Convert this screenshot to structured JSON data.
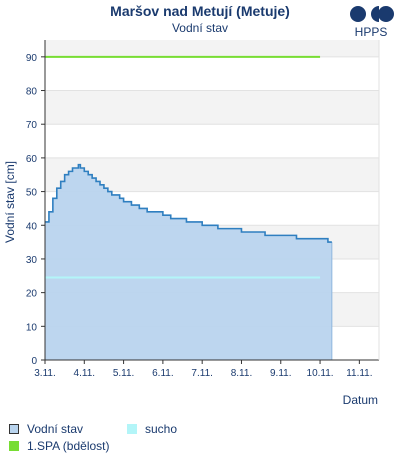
{
  "chart_data": {
    "type": "area",
    "title": "Maršov nad Metují (Metuje)",
    "subtitle": "Vodní stav",
    "xlabel": "Datum",
    "ylabel": "Vodní stav [cm]",
    "ylim": [
      0,
      95
    ],
    "yticks": [
      0,
      10,
      20,
      30,
      40,
      50,
      60,
      70,
      80,
      90
    ],
    "xlim": [
      3,
      11.5
    ],
    "xticks": [
      3,
      4,
      5,
      6,
      7,
      8,
      9,
      10,
      11
    ],
    "xtick_labels": [
      "3.11.",
      "4.11.",
      "5.11.",
      "6.11.",
      "7.11.",
      "8.11.",
      "9.11.",
      "10.11.",
      "11.11."
    ],
    "grid": "horizontal alternating bands",
    "legend_position": "bottom",
    "series": [
      {
        "name": "Vodní stav",
        "color": "#2f7fc0",
        "fill": "#b9d4ee",
        "x": [
          3.0,
          3.1,
          3.2,
          3.3,
          3.4,
          3.5,
          3.6,
          3.7,
          3.8,
          3.85,
          3.9,
          4.0,
          4.1,
          4.2,
          4.3,
          4.4,
          4.5,
          4.6,
          4.7,
          4.8,
          4.9,
          5.0,
          5.2,
          5.4,
          5.6,
          5.8,
          6.0,
          6.2,
          6.4,
          6.6,
          6.8,
          7.0,
          7.2,
          7.4,
          7.6,
          7.8,
          8.0,
          8.3,
          8.6,
          9.0,
          9.4,
          9.7,
          10.0,
          10.2,
          10.3
        ],
        "y": [
          41,
          44,
          48,
          51,
          53,
          55,
          56,
          57,
          57,
          58,
          57,
          56,
          55,
          54,
          53,
          52,
          51,
          50,
          49,
          49,
          48,
          47,
          46,
          45,
          44,
          44,
          43,
          42,
          42,
          41,
          41,
          40,
          40,
          39,
          39,
          39,
          38,
          38,
          37,
          37,
          36,
          36,
          36,
          35,
          35
        ]
      }
    ],
    "thresholds": [
      {
        "name": "1.SPA (bdělost)",
        "value": 90,
        "color": "#77dd33",
        "x_start": 3.0,
        "x_end": 10.0
      },
      {
        "name": "sucho",
        "value": 24.5,
        "color": "#b3f5f8",
        "x_start": 3.0,
        "x_end": 10.0
      }
    ]
  },
  "logo": {
    "text": "HPPS",
    "color": "#1a3a6e"
  },
  "legend": {
    "items": [
      {
        "label": "Vodní stav",
        "swatch": "#b9d4ee",
        "border": "#333333"
      },
      {
        "label": "sucho",
        "swatch": "#b3f5f8",
        "border": "#b3f5f8"
      },
      {
        "label": "1.SPA (bdělost)",
        "swatch": "#77dd33",
        "border": "#77dd33"
      }
    ]
  }
}
